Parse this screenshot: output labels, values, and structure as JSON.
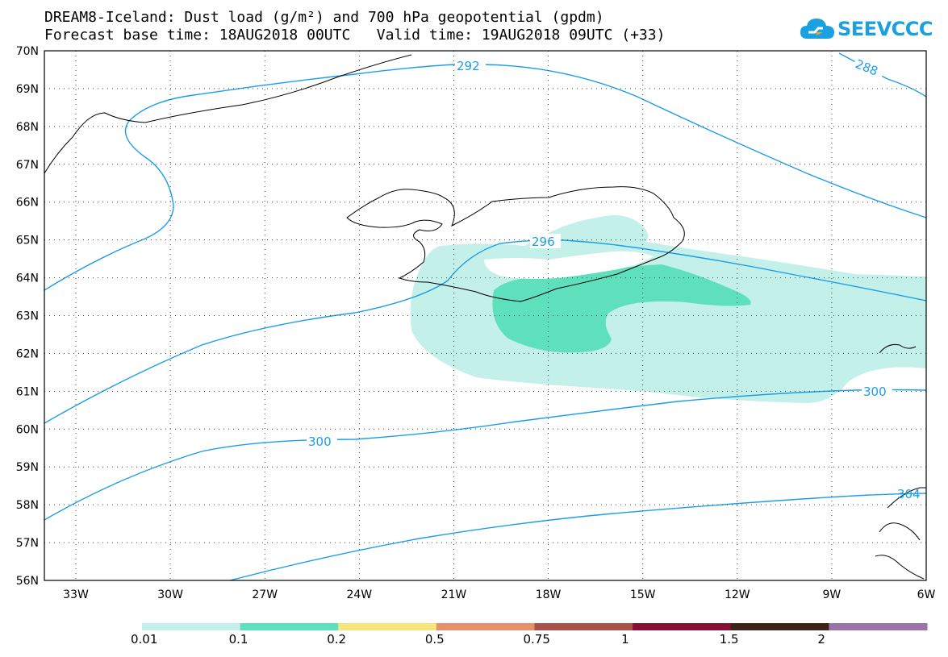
{
  "header": {
    "line1": "DREAM8-Iceland: Dust load (g/m²) and 700 hPa geopotential (gpdm)",
    "line2": "Forecast base time: 18AUG2018 00UTC   Valid time: 19AUG2018 09UTC (+33)"
  },
  "logo": {
    "text": "SEEVCCC",
    "color": "#1ba1e2"
  },
  "map": {
    "lat_labels": [
      "70N",
      "69N",
      "68N",
      "67N",
      "66N",
      "65N",
      "64N",
      "63N",
      "62N",
      "61N",
      "60N",
      "59N",
      "58N",
      "57N",
      "56N"
    ],
    "lon_labels": [
      "33W",
      "30W",
      "27W",
      "24W",
      "21W",
      "18W",
      "15W",
      "12W",
      "9W",
      "6W"
    ],
    "contour_labels": [
      "292",
      "288",
      "296",
      "300",
      "300",
      "304"
    ],
    "contour_color": "#1a9ee8",
    "coast_color": "#000000"
  },
  "colorbar": {
    "labels": [
      "0.01",
      "0.1",
      "0.2",
      "0.5",
      "0.75",
      "1",
      "1.5",
      "2"
    ],
    "colors": [
      "#c4f0ea",
      "#5fe0bd",
      "#f5e57a",
      "#e8906a",
      "#a8524a",
      "#860f33",
      "#3a2417",
      "#9b72a8"
    ]
  }
}
